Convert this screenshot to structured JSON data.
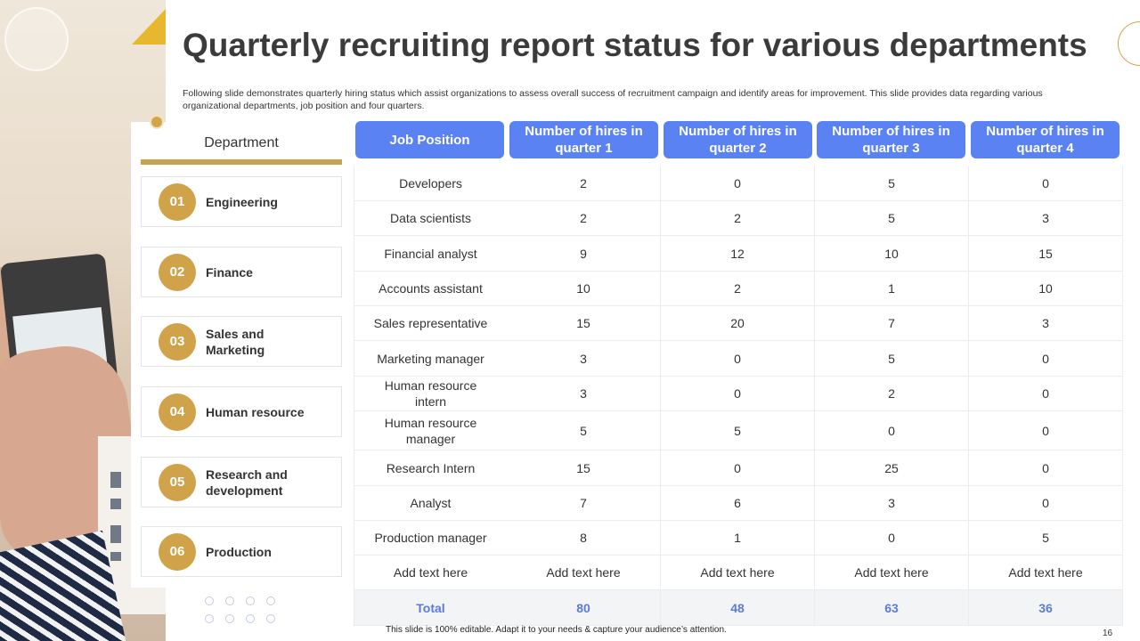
{
  "title": "Quarterly recruiting report status for various departments",
  "subtitle": "Following slide demonstrates quarterly hiring status which assist organizations to assess overall success of recruitment campaign and identify areas for improvement. This slide provides data regarding various organizational departments, job position and four quarters.",
  "department": {
    "header": "Department",
    "items": [
      {
        "num": "01",
        "label": "Engineering"
      },
      {
        "num": "02",
        "label": "Finance"
      },
      {
        "num": "03",
        "label": "Sales and Marketing"
      },
      {
        "num": "04",
        "label": "Human resource"
      },
      {
        "num": "05",
        "label": "Research and development"
      },
      {
        "num": "06",
        "label": "Production"
      }
    ]
  },
  "table": {
    "headers": [
      "Job Position",
      "Number of hires in quarter 1",
      "Number of hires in quarter 2",
      "Number of hires in quarter 3",
      "Number of hires in quarter 4"
    ],
    "rows": [
      [
        "Developers",
        "2",
        "0",
        "5",
        "0"
      ],
      [
        "Data scientists",
        "2",
        "2",
        "5",
        "3"
      ],
      [
        "Financial analyst",
        "9",
        "12",
        "10",
        "15"
      ],
      [
        "Accounts assistant",
        "10",
        "2",
        "1",
        "10"
      ],
      [
        "Sales representative",
        "15",
        "20",
        "7",
        "3"
      ],
      [
        "Marketing manager",
        "3",
        "0",
        "5",
        "0"
      ],
      [
        "Human resource intern",
        "3",
        "0",
        "2",
        "0"
      ],
      [
        "Human resource manager",
        "5",
        "5",
        "0",
        "0"
      ],
      [
        "Research Intern",
        "15",
        "0",
        "25",
        "0"
      ],
      [
        "Analyst",
        "7",
        "6",
        "3",
        "0"
      ],
      [
        "Production manager",
        "8",
        "1",
        "0",
        "5"
      ],
      [
        "Add text here",
        "Add text here",
        "Add text here",
        "Add text here",
        "Add text here"
      ]
    ],
    "total": [
      "Total",
      "80",
      "48",
      "63",
      "36"
    ]
  },
  "footer": "This slide is 100% editable. Adapt it to your needs & capture your audience’s attention.",
  "page_number": "16",
  "colors": {
    "accent_gold": "#d0a24a",
    "header_blue": "#5b82f2",
    "total_text": "#5b7bd6"
  }
}
